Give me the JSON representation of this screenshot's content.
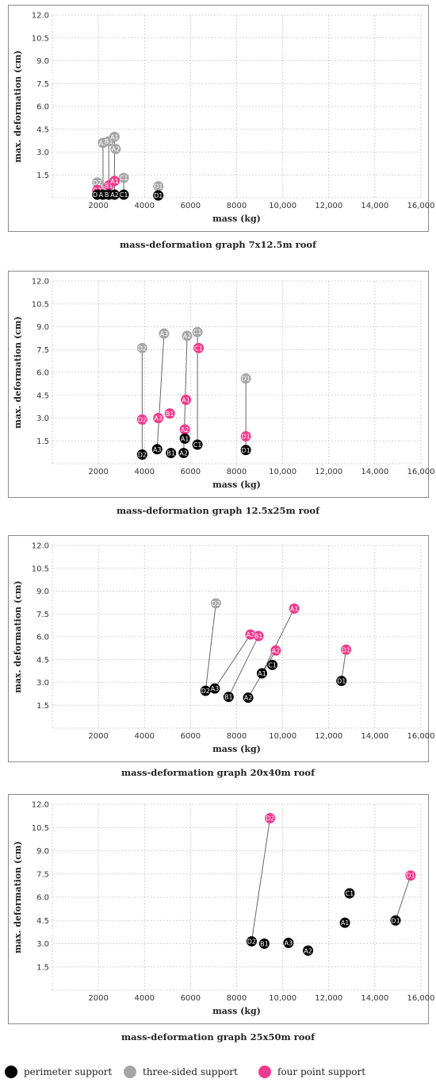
{
  "colors": {
    "perimeter": "#000000",
    "three_sided": "#a6a6a6",
    "four_point": "#ee3a8c",
    "grid": "#c8c8c8"
  },
  "legend": [
    {
      "key": "perimeter",
      "label": "perimeter support"
    },
    {
      "key": "three_sided",
      "label": "three-sided support"
    },
    {
      "key": "four_point",
      "label": "four point support"
    }
  ],
  "chart_data": [
    {
      "type": "scatter",
      "title": "mass-deformation graph 7x12.5m roof",
      "xlabel": "mass (kg)",
      "ylabel": "max. deformation (cm)",
      "xlim": [
        0,
        16000
      ],
      "ylim": [
        0,
        12
      ],
      "xticks": [
        "2000",
        "4000",
        "6000",
        "8000",
        "10,000",
        "12,000",
        "14,000",
        "16,000"
      ],
      "yticks": [
        "1.5",
        "3.0",
        "4.5",
        "6.0",
        "7.5",
        "9.0",
        "10.5",
        "12.0"
      ],
      "grid": true,
      "series": [
        {
          "key": "perimeter",
          "points": [
            {
              "label": "D2",
              "x": 1950,
              "y": 0.2
            },
            {
              "label": "A3",
              "x": 2200,
              "y": 0.2
            },
            {
              "label": "B1",
              "x": 2450,
              "y": 0.2
            },
            {
              "label": "A2",
              "x": 2700,
              "y": 0.2
            },
            {
              "label": "C1",
              "x": 3100,
              "y": 0.2
            },
            {
              "label": "D1",
              "x": 4600,
              "y": 0.15
            }
          ]
        },
        {
          "key": "three_sided",
          "points": [
            {
              "label": "D2",
              "x": 1950,
              "y": 1.0
            },
            {
              "label": "A3",
              "x": 2200,
              "y": 3.6
            },
            {
              "label": "B1",
              "x": 2450,
              "y": 3.7
            },
            {
              "label": "A1",
              "x": 2700,
              "y": 4.0
            },
            {
              "label": "A2",
              "x": 2750,
              "y": 3.2
            },
            {
              "label": "C1",
              "x": 3100,
              "y": 1.3
            },
            {
              "label": "D1",
              "x": 4600,
              "y": 0.75
            }
          ]
        },
        {
          "key": "four_point",
          "points": [
            {
              "label": "D2",
              "x": 1950,
              "y": 0.5
            },
            {
              "label": "B1",
              "x": 2450,
              "y": 0.8
            },
            {
              "label": "A1",
              "x": 2700,
              "y": 1.1
            }
          ]
        }
      ],
      "links": [
        {
          "x": 1950,
          "y1": 0.2,
          "y2": 1.0
        },
        {
          "x": 2200,
          "y1": 0.2,
          "y2": 3.6
        },
        {
          "x": 2450,
          "y1": 0.2,
          "y2": 3.7
        },
        {
          "x": 2700,
          "y1": 0.2,
          "y2": 4.0
        },
        {
          "x": 3100,
          "y1": 0.2,
          "y2": 1.3
        },
        {
          "x": 4600,
          "y1": 0.15,
          "y2": 0.75
        }
      ]
    },
    {
      "type": "scatter",
      "title": "mass-deformation graph 12.5x25m roof",
      "xlabel": "mass (kg)",
      "ylabel": "max. deformation (cm)",
      "xlim": [
        0,
        16000
      ],
      "ylim": [
        0,
        12
      ],
      "xticks": [
        "2000",
        "4000",
        "6000",
        "8000",
        "10,000",
        "12,000",
        "14,000",
        "16,000"
      ],
      "yticks": [
        "1.5",
        "3.0",
        "4.5",
        "6.0",
        "7.5",
        "9.0",
        "10.5",
        "12.0"
      ],
      "grid": true,
      "series": [
        {
          "key": "perimeter",
          "points": [
            {
              "label": "D2",
              "x": 3900,
              "y": 0.6
            },
            {
              "label": "A3",
              "x": 4550,
              "y": 0.95
            },
            {
              "label": "B1",
              "x": 5150,
              "y": 0.7
            },
            {
              "label": "A1",
              "x": 5750,
              "y": 1.65
            },
            {
              "label": "A2",
              "x": 5700,
              "y": 0.7
            },
            {
              "label": "C1",
              "x": 6300,
              "y": 1.25
            },
            {
              "label": "D1",
              "x": 8400,
              "y": 0.9
            }
          ]
        },
        {
          "key": "three_sided",
          "points": [
            {
              "label": "D2",
              "x": 3900,
              "y": 7.6
            },
            {
              "label": "A3",
              "x": 4850,
              "y": 8.55
            },
            {
              "label": "A2",
              "x": 5850,
              "y": 8.4
            },
            {
              "label": "C1",
              "x": 6300,
              "y": 8.65
            },
            {
              "label": "D1",
              "x": 8400,
              "y": 5.6
            }
          ]
        },
        {
          "key": "four_point",
          "points": [
            {
              "label": "D2",
              "x": 3900,
              "y": 2.9
            },
            {
              "label": "A3",
              "x": 4600,
              "y": 3.0
            },
            {
              "label": "B1",
              "x": 5100,
              "y": 3.3
            },
            {
              "label": "A1",
              "x": 5800,
              "y": 4.2
            },
            {
              "label": "A2",
              "x": 5750,
              "y": 2.25
            },
            {
              "label": "C1",
              "x": 6350,
              "y": 7.6
            },
            {
              "label": "D1",
              "x": 8400,
              "y": 1.8
            }
          ]
        }
      ],
      "links": [
        {
          "x": 3900,
          "y1": 0.6,
          "y2": 7.6
        },
        {
          "x1": 4550,
          "y1": 0.95,
          "x2": 4850,
          "y2": 8.55
        },
        {
          "x1": 5700,
          "y1": 0.7,
          "x2": 5850,
          "y2": 8.4
        },
        {
          "x": 6300,
          "y1": 1.25,
          "y2": 8.65
        },
        {
          "x": 8400,
          "y1": 0.9,
          "y2": 5.6
        }
      ]
    },
    {
      "type": "scatter",
      "title": "mass-deformation graph 20x40m roof",
      "xlabel": "mass (kg)",
      "ylabel": "max. deformation (cm)",
      "xlim": [
        0,
        16000
      ],
      "ylim": [
        0,
        12
      ],
      "xticks": [
        "2000",
        "4000",
        "6000",
        "8000",
        "10,000",
        "12,000",
        "14,000",
        "16,000"
      ],
      "yticks": [
        "1.5",
        "3.0",
        "4.5",
        "6.0",
        "7.5",
        "9.0",
        "10.5",
        "12.0"
      ],
      "grid": true,
      "series": [
        {
          "key": "perimeter",
          "points": [
            {
              "label": "D2",
              "x": 6650,
              "y": 2.45
            },
            {
              "label": "A3",
              "x": 7050,
              "y": 2.6
            },
            {
              "label": "B1",
              "x": 7650,
              "y": 2.05
            },
            {
              "label": "A2",
              "x": 8500,
              "y": 2.0
            },
            {
              "label": "A1",
              "x": 9100,
              "y": 3.6
            },
            {
              "label": "C1",
              "x": 9550,
              "y": 4.15
            },
            {
              "label": "D1",
              "x": 12550,
              "y": 3.1
            }
          ]
        },
        {
          "key": "three_sided",
          "points": [
            {
              "label": "D2",
              "x": 7100,
              "y": 8.2
            }
          ]
        },
        {
          "key": "four_point",
          "points": [
            {
              "label": "A3",
              "x": 8600,
              "y": 6.15
            },
            {
              "label": "B1",
              "x": 8950,
              "y": 6.05
            },
            {
              "label": "A2",
              "x": 9700,
              "y": 5.1
            },
            {
              "label": "A1",
              "x": 10500,
              "y": 7.85
            },
            {
              "label": "D1",
              "x": 12750,
              "y": 5.15
            }
          ]
        }
      ],
      "links": [
        {
          "x1": 6650,
          "y1": 2.45,
          "x2": 7100,
          "y2": 8.2
        },
        {
          "x1": 7050,
          "y1": 2.6,
          "x2": 8600,
          "y2": 6.15
        },
        {
          "x1": 7650,
          "y1": 2.05,
          "x2": 8950,
          "y2": 6.05
        },
        {
          "x1": 8500,
          "y1": 2.0,
          "x2": 9700,
          "y2": 5.1
        },
        {
          "x1": 9100,
          "y1": 3.6,
          "x2": 10500,
          "y2": 7.85
        },
        {
          "x1": 12550,
          "y1": 3.1,
          "x2": 12750,
          "y2": 5.15
        }
      ]
    },
    {
      "type": "scatter",
      "title": "mass-deformation graph 25x50m roof",
      "xlabel": "mass (kg)",
      "ylabel": "max. deformation (cm)",
      "xlim": [
        0,
        16000
      ],
      "ylim": [
        0,
        12
      ],
      "xticks": [
        "2000",
        "4000",
        "6000",
        "8000",
        "10,000",
        "12,000",
        "14,000",
        "16,000"
      ],
      "yticks": [
        "1.5",
        "3.0",
        "4.5",
        "6.0",
        "7.5",
        "9.0",
        "10.5",
        "12.0"
      ],
      "grid": true,
      "series": [
        {
          "key": "perimeter",
          "points": [
            {
              "label": "D2",
              "x": 8650,
              "y": 3.15
            },
            {
              "label": "B1",
              "x": 9200,
              "y": 3.0
            },
            {
              "label": "A3",
              "x": 10250,
              "y": 3.05
            },
            {
              "label": "A2",
              "x": 11100,
              "y": 2.55
            },
            {
              "label": "A1",
              "x": 12700,
              "y": 4.35
            },
            {
              "label": "C1",
              "x": 12900,
              "y": 6.25
            },
            {
              "label": "D1",
              "x": 14900,
              "y": 4.5
            }
          ]
        },
        {
          "key": "three_sided",
          "points": []
        },
        {
          "key": "four_point",
          "points": [
            {
              "label": "D2",
              "x": 9450,
              "y": 11.1
            },
            {
              "label": "D1",
              "x": 15550,
              "y": 7.4
            }
          ]
        }
      ],
      "links": [
        {
          "x1": 8650,
          "y1": 3.15,
          "x2": 9450,
          "y2": 11.1
        },
        {
          "x1": 14900,
          "y1": 4.5,
          "x2": 15550,
          "y2": 7.4
        }
      ]
    }
  ]
}
